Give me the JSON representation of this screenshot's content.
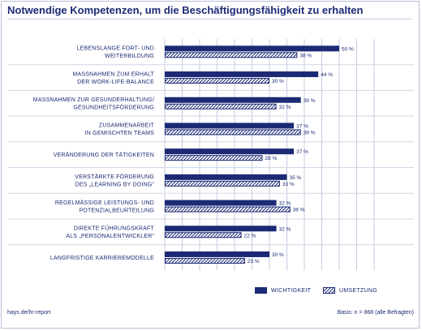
{
  "title": "Notwendige Kompetenzen, um die Beschäftigungsfähigkeit zu erhalten",
  "footer": {
    "left": "hays.de/hr-report",
    "right": "Basis: n = 868 (alle Befragten)"
  },
  "colors": {
    "primary": "#1c2a75",
    "grid": "#c7cbe0",
    "row_separator": "#d2d5e6"
  },
  "chart_data": {
    "type": "bar",
    "orientation": "horizontal",
    "title": "Notwendige Kompetenzen, um die Beschäftigungsfähigkeit zu erhalten",
    "unit": "%",
    "xlim": [
      0,
      50
    ],
    "grid": true,
    "legend_placement": "bottom-right",
    "categories": [
      [
        "LEBENSLANGE FORT- UND",
        "WEITERBILDUNG"
      ],
      [
        "MASSNAHMEN ZUM ERHALT",
        "DER WORK-LIFE-BALANCE"
      ],
      [
        "MASSNAHMEN ZUR GESUNDERHALTUNG/",
        "GESUNDHEITSFÖRDERUNG"
      ],
      [
        "ZUSAMMENARBEIT",
        "IN GEMISCHTEN TEAMS"
      ],
      [
        "VERÄNDERUNG DER TÄTIGKEITEN"
      ],
      [
        "VERSTÄRKTE FÖRDERUNG",
        "DES „LEARNING BY DOING“"
      ],
      [
        "REGELMÄSSIGE LEISTUNGS- UND",
        "POTENZIALBEURTEILUNG"
      ],
      [
        "DIREKTE FÜHRUNGSKRAFT",
        "ALS „PERSONALENTWICKLER“"
      ],
      [
        "LANGFRISTIGE KARRIEREMODELLE"
      ]
    ],
    "series": [
      {
        "name": "WICHTIGKEIT",
        "fill": "solid",
        "values": [
          50,
          44,
          39,
          37,
          37,
          35,
          32,
          32,
          30
        ]
      },
      {
        "name": "UMSETZUNG",
        "fill": "hatched",
        "values": [
          38,
          30,
          32,
          39,
          28,
          33,
          36,
          22,
          23
        ]
      }
    ]
  }
}
